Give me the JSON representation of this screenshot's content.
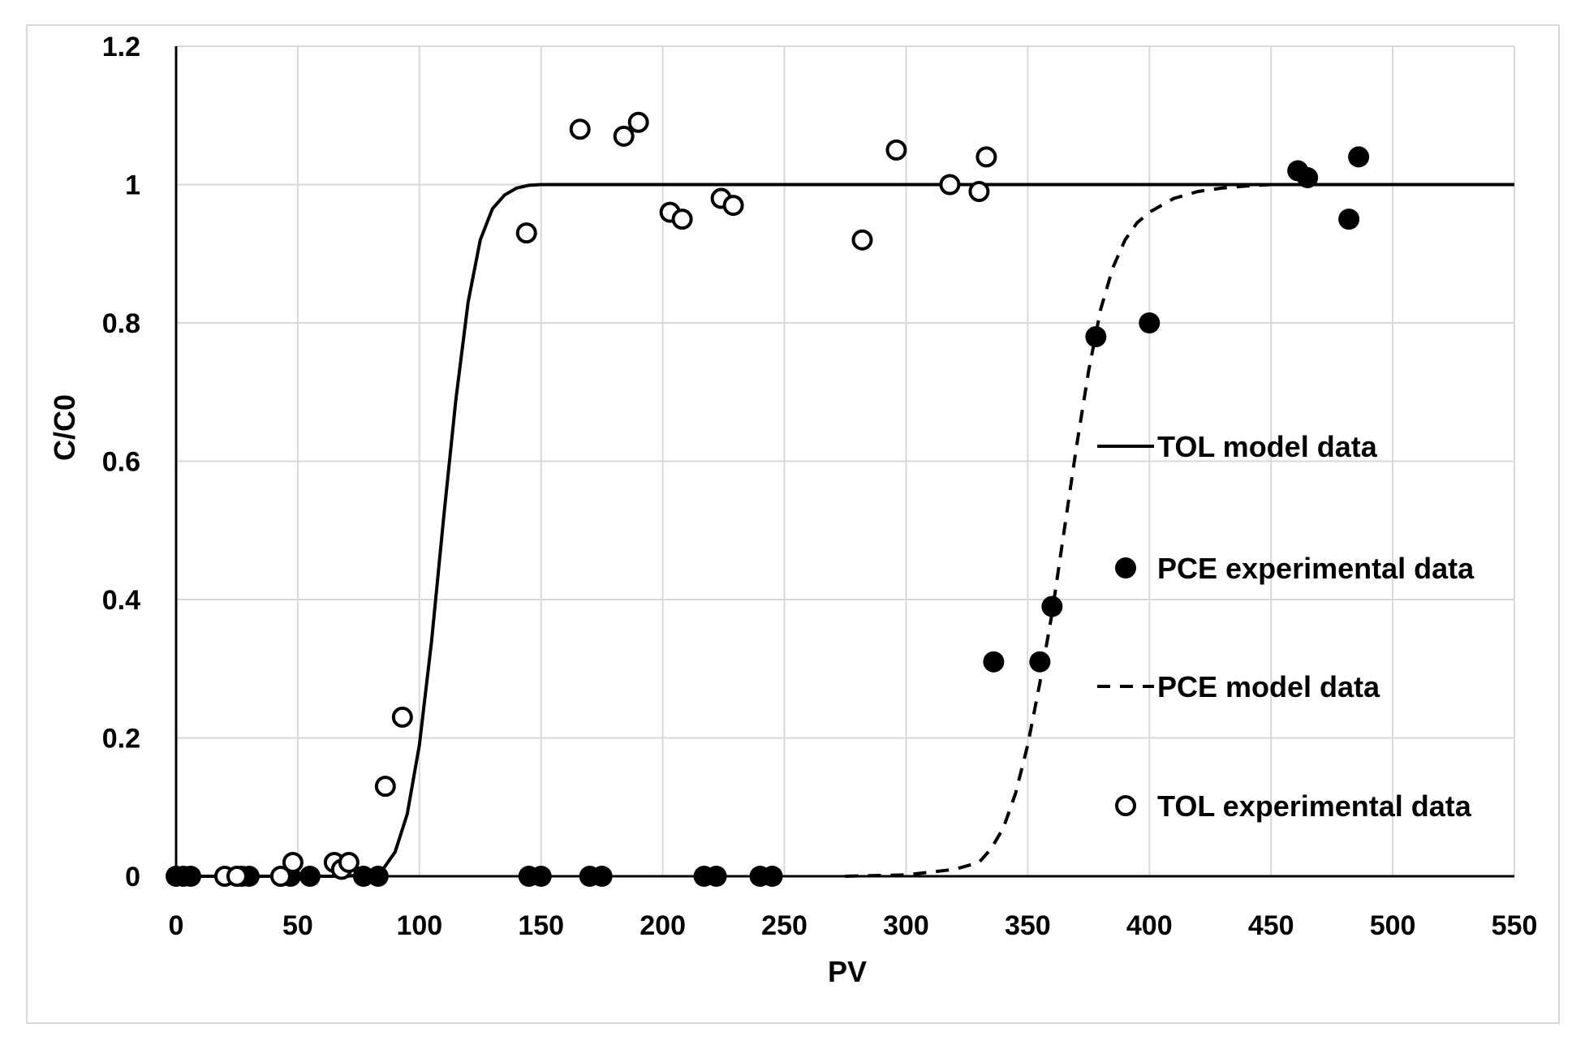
{
  "chart_data": {
    "type": "scatter",
    "title": "",
    "xlabel": "PV",
    "ylabel": "C/C0",
    "xlim": [
      0,
      550
    ],
    "ylim": [
      0,
      1.2
    ],
    "x_ticks": [
      0,
      50,
      100,
      150,
      200,
      250,
      300,
      350,
      400,
      450,
      500,
      550
    ],
    "y_ticks": [
      0,
      0.2,
      0.4,
      0.6,
      0.8,
      1,
      1.2
    ],
    "x_tick_labels": [
      "0",
      "50",
      "100",
      "150",
      "200",
      "250",
      "300",
      "350",
      "400",
      "450",
      "500",
      "550"
    ],
    "y_tick_labels": [
      "0",
      "0.2",
      "0.4",
      "0.6",
      "0.8",
      "1",
      "1.2"
    ],
    "grid": true,
    "legend_position": "right",
    "series": [
      {
        "name": "TOL model data",
        "kind": "line",
        "style": "solid",
        "color": "#000000",
        "x": [
          0,
          60,
          70,
          80,
          85,
          90,
          95,
          100,
          105,
          110,
          115,
          120,
          125,
          130,
          135,
          140,
          145,
          150,
          160,
          180,
          200,
          300,
          400,
          500,
          550
        ],
        "y": [
          0,
          0,
          0,
          0.003,
          0.01,
          0.035,
          0.09,
          0.19,
          0.34,
          0.52,
          0.69,
          0.83,
          0.92,
          0.965,
          0.985,
          0.995,
          0.999,
          1,
          1,
          1,
          1,
          1,
          1,
          1,
          1
        ]
      },
      {
        "name": "PCE experimental data",
        "kind": "scatter",
        "marker": "filled-circle",
        "color": "#000000",
        "x": [
          0,
          3,
          6,
          27,
          30,
          47,
          55,
          77,
          83,
          145,
          150,
          170,
          175,
          217,
          222,
          240,
          245,
          336,
          355,
          360,
          378,
          400,
          461,
          465,
          482,
          486
        ],
        "y": [
          0,
          0,
          0,
          0,
          0,
          0,
          0,
          0,
          0,
          0,
          0,
          0,
          0,
          0,
          0,
          0,
          0,
          0.31,
          0.31,
          0.39,
          0.78,
          0.8,
          1.02,
          1.01,
          0.95,
          1.04
        ]
      },
      {
        "name": "PCE model data",
        "kind": "line",
        "style": "dashed",
        "color": "#000000",
        "x": [
          275,
          300,
          320,
          330,
          335,
          340,
          345,
          350,
          355,
          360,
          365,
          370,
          375,
          380,
          385,
          390,
          395,
          400,
          410,
          420,
          430,
          440,
          450,
          550
        ],
        "y": [
          0,
          0.002,
          0.01,
          0.02,
          0.04,
          0.07,
          0.12,
          0.19,
          0.28,
          0.38,
          0.5,
          0.62,
          0.73,
          0.82,
          0.88,
          0.92,
          0.945,
          0.96,
          0.98,
          0.99,
          0.995,
          0.998,
          1,
          1
        ]
      },
      {
        "name": "TOL experimental data",
        "kind": "scatter",
        "marker": "open-circle",
        "color": "#000000",
        "x": [
          20,
          25,
          43,
          48,
          65,
          68,
          71,
          86,
          93,
          144,
          166,
          184,
          190,
          203,
          208,
          224,
          229,
          282,
          296,
          318,
          330,
          333
        ],
        "y": [
          0,
          0,
          0,
          0.02,
          0.02,
          0.01,
          0.02,
          0.13,
          0.23,
          0.93,
          1.08,
          1.07,
          1.09,
          0.96,
          0.95,
          0.98,
          0.97,
          0.92,
          1.05,
          1,
          0.99,
          1.04
        ]
      }
    ]
  }
}
